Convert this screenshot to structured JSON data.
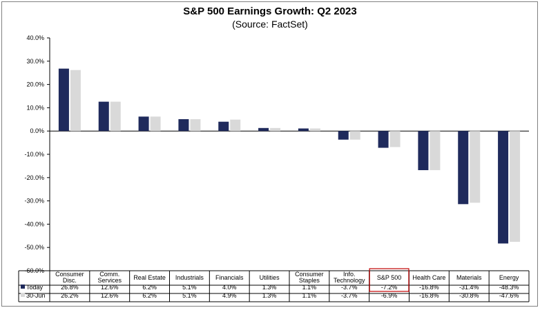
{
  "chart_data": {
    "type": "bar",
    "title": "S&P 500 Earnings Growth: Q2 2023",
    "subtitle": "(Source: FactSet)",
    "categories": [
      [
        "Consumer",
        "Disc."
      ],
      [
        "Comm.",
        "Services"
      ],
      [
        "Real Estate"
      ],
      [
        "Industrials"
      ],
      [
        "Financials"
      ],
      [
        "Utilities"
      ],
      [
        "Consumer",
        "Staples"
      ],
      [
        "Info.",
        "Technology"
      ],
      [
        "S&P 500"
      ],
      [
        "Health Care"
      ],
      [
        "Materials"
      ],
      [
        "Energy"
      ]
    ],
    "series": [
      {
        "name": "Today",
        "color": "#1f2a5c",
        "values": [
          26.8,
          12.6,
          6.2,
          5.1,
          4.0,
          1.3,
          1.1,
          -3.7,
          -7.2,
          -16.8,
          -31.4,
          -48.3
        ],
        "labels": [
          "26.8%",
          "12.6%",
          "6.2%",
          "5.1%",
          "4.0%",
          "1.3%",
          "1.1%",
          "-3.7%",
          "-7.2%",
          "-16.8%",
          "-31.4%",
          "-48.3%"
        ]
      },
      {
        "name": "30-Jun",
        "color": "#d9d9d9",
        "values": [
          26.2,
          12.6,
          6.2,
          5.1,
          4.9,
          1.3,
          1.1,
          -3.7,
          -6.9,
          -16.8,
          -30.8,
          -47.6
        ],
        "labels": [
          "26.2%",
          "12.6%",
          "6.2%",
          "5.1%",
          "4.9%",
          "1.3%",
          "1.1%",
          "-3.7%",
          "-6.9%",
          "-16.8%",
          "-30.8%",
          "-47.6%"
        ]
      }
    ],
    "yticks": [
      "40.0%",
      "30.0%",
      "20.0%",
      "10.0%",
      "0.0%",
      "-10.0%",
      "-20.0%",
      "-30.0%",
      "-40.0%",
      "-50.0%",
      "-60.0%"
    ],
    "ylim": [
      -60,
      40
    ],
    "highlight_category_index": 8,
    "highlight_color": "#c00000",
    "legend": "data-table",
    "grid": false
  }
}
